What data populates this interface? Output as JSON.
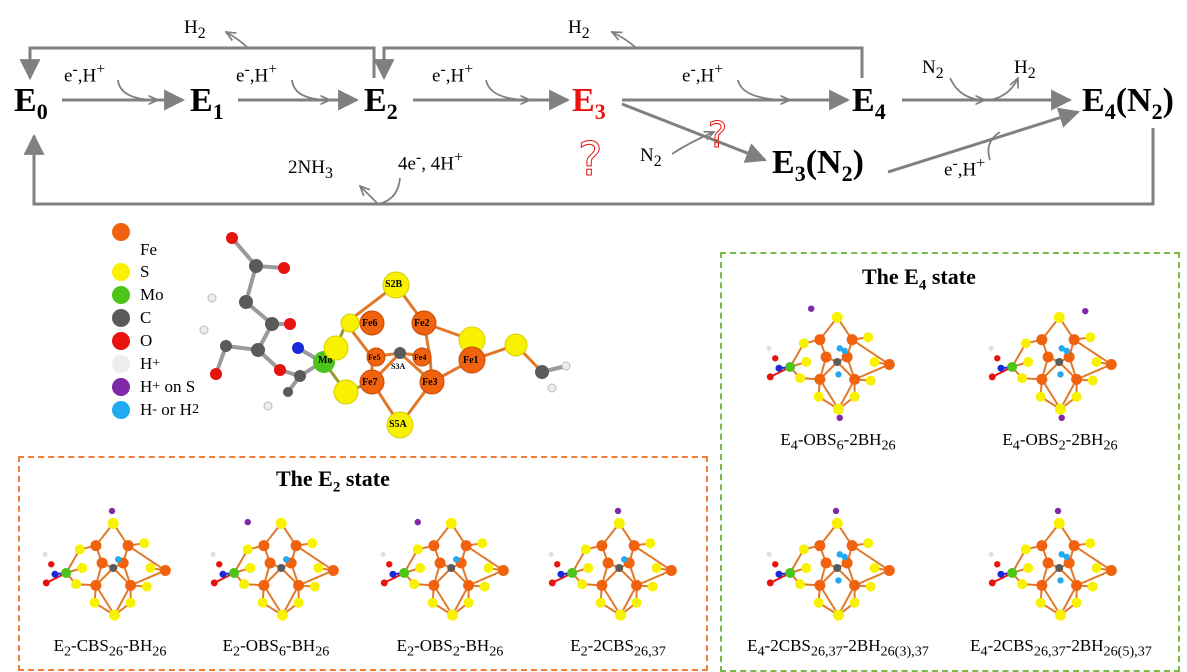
{
  "cycle": {
    "states": {
      "e0": {
        "base": "E",
        "sub": "0"
      },
      "e1": {
        "base": "E",
        "sub": "1"
      },
      "e2": {
        "base": "E",
        "sub": "2"
      },
      "e3": {
        "base": "E",
        "sub": "3"
      },
      "e4": {
        "base": "E",
        "sub": "4"
      },
      "e4n2": {
        "base": "E",
        "sub": "4",
        "tail": "(N",
        "tail_sub": "2",
        "tail_end": ")"
      },
      "e3n2": {
        "base": "E",
        "sub": "3",
        "tail": "(N",
        "tail_sub": "2",
        "tail_end": ")"
      }
    },
    "labels": {
      "electron_proton": "e",
      "h2": "H",
      "n2": "N",
      "nh3": "2NH",
      "four_e": "4e",
      "four_h": ", 4H"
    },
    "question_mark": "?",
    "colors": {
      "arrow": "#808080",
      "highlight": "#e8130f"
    }
  },
  "legend": [
    {
      "label": "Fe",
      "color": "#f0620e"
    },
    {
      "label": "S",
      "color": "#f8f200"
    },
    {
      "label": "Mo",
      "color": "#4cc41a"
    },
    {
      "label": "C",
      "color": "#5a5a5a"
    },
    {
      "label": "O",
      "color": "#e8130f"
    },
    {
      "label": "H+",
      "color": "#ededed"
    },
    {
      "label": "H+ on S",
      "color": "#7e2aa8"
    },
    {
      "label": "H- or H2",
      "color": "#22aaf0"
    }
  ],
  "cluster_labels": [
    "S2B",
    "Fe6",
    "Fe2",
    "Fe5",
    "Fe4",
    "S3A",
    "Fe1",
    "Fe7",
    "Fe3",
    "S5A",
    "Mo"
  ],
  "e2_panel": {
    "title": "The E",
    "title_sub": "2",
    "title_end": " state",
    "color": "#f07d3a",
    "structures": [
      {
        "caption": "E2-CBS26-BH26"
      },
      {
        "caption": "E2-OBS6-BH26"
      },
      {
        "caption": "E2-OBS2-BH26"
      },
      {
        "caption": "E2-2CBS26,37"
      }
    ]
  },
  "e4_panel": {
    "title": "The E",
    "title_sub": "4",
    "title_end": " state",
    "color": "#7bb84a",
    "structures": [
      {
        "caption": "E4-OBS6-2BH26"
      },
      {
        "caption": "E4-OBS2-2BH26"
      },
      {
        "caption": "E4-2CBS26,37-2BH26(3),37"
      },
      {
        "caption": "E4-2CBS26,37-2BH26(5),37"
      }
    ]
  }
}
